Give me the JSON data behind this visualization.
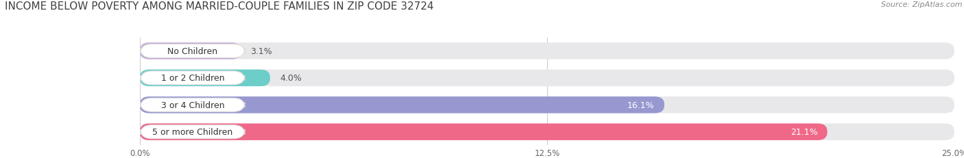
{
  "title": "INCOME BELOW POVERTY AMONG MARRIED-COUPLE FAMILIES IN ZIP CODE 32724",
  "source": "Source: ZipAtlas.com",
  "categories": [
    "No Children",
    "1 or 2 Children",
    "3 or 4 Children",
    "5 or more Children"
  ],
  "values": [
    3.1,
    4.0,
    16.1,
    21.1
  ],
  "bar_colors": [
    "#c8aed4",
    "#6dcdc8",
    "#9898d0",
    "#f06888"
  ],
  "xlim": [
    0,
    25.0
  ],
  "xticks": [
    0.0,
    12.5,
    25.0
  ],
  "xticklabels": [
    "0.0%",
    "12.5%",
    "25.0%"
  ],
  "background_color": "#ffffff",
  "bar_background": "#e8e8ea",
  "title_fontsize": 11,
  "source_fontsize": 8,
  "label_fontsize": 9,
  "value_fontsize": 9,
  "value_inside_threshold": 10
}
